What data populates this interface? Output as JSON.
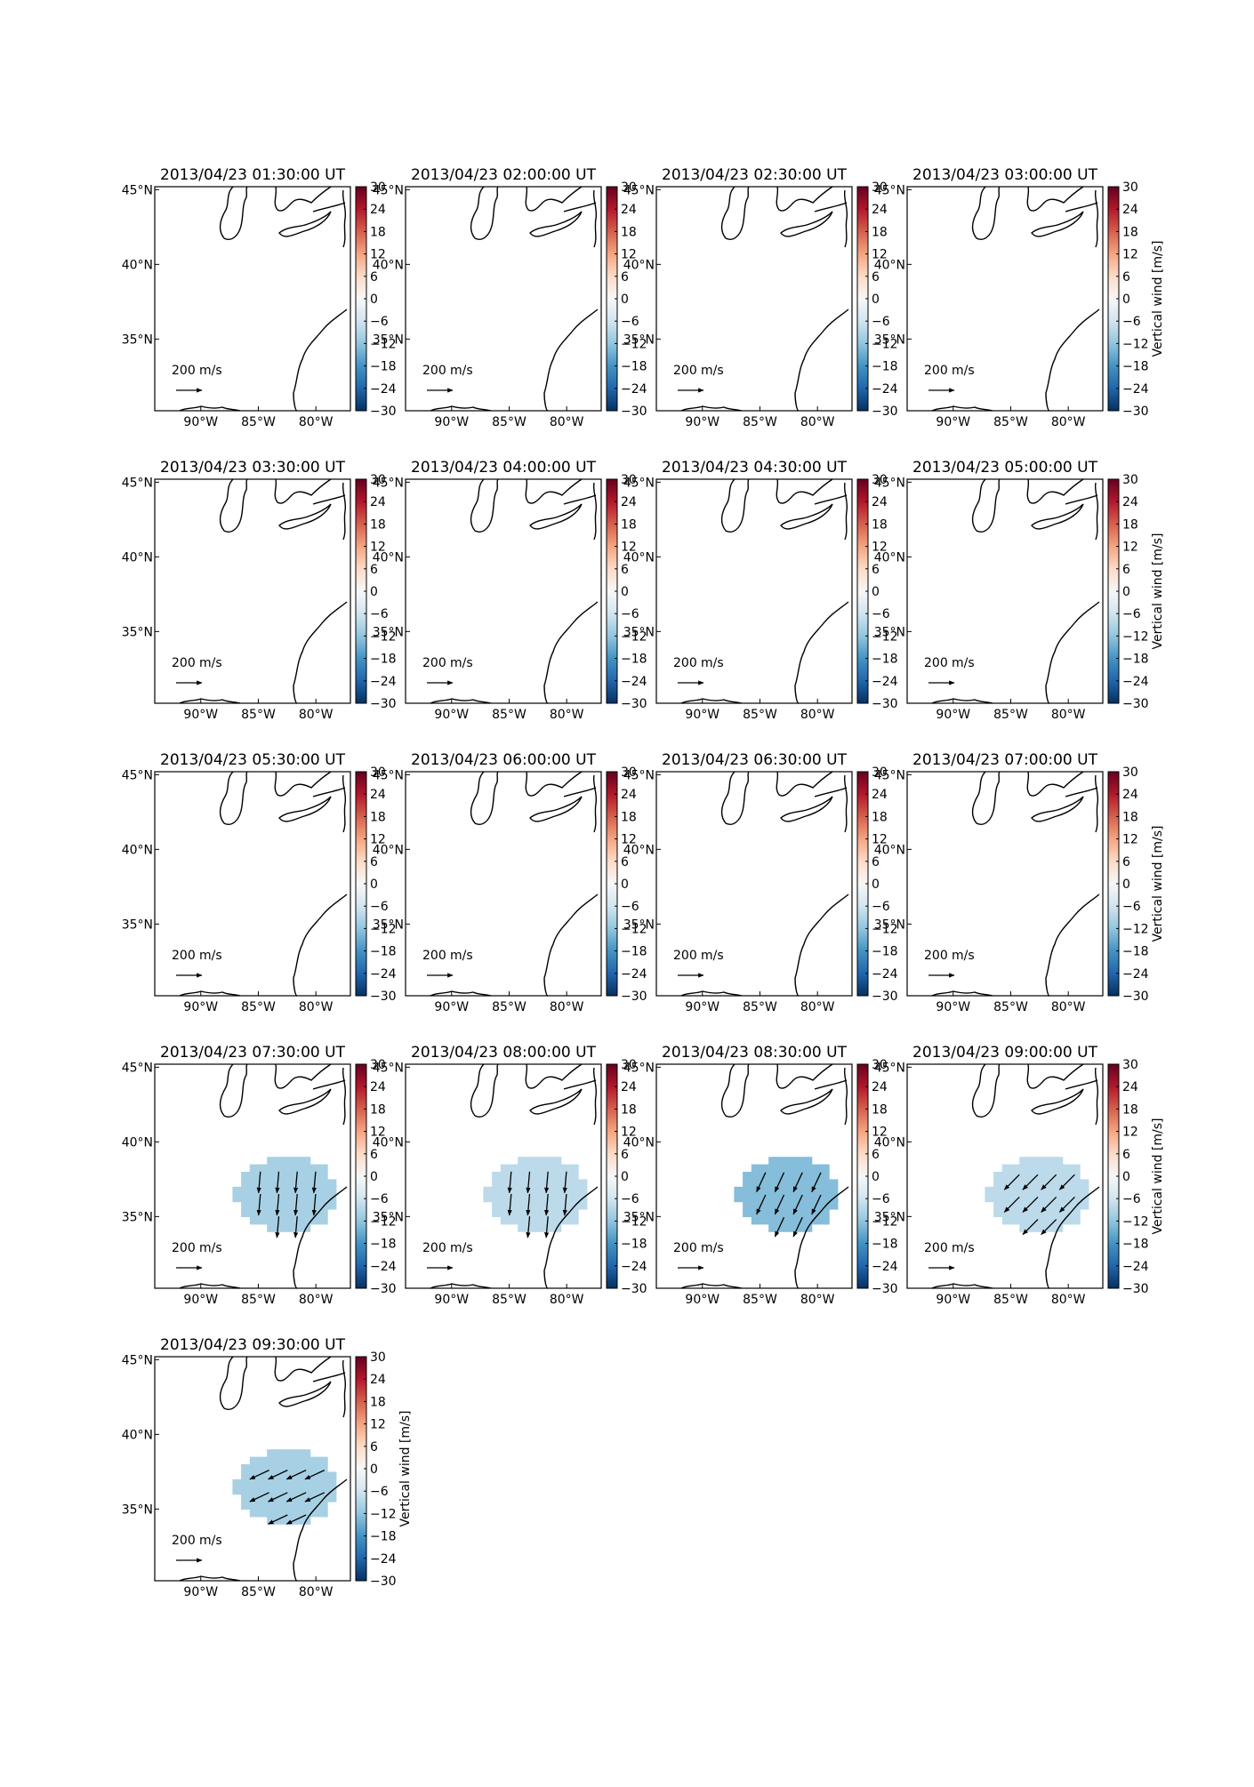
{
  "chart_data": {
    "type": "map",
    "grid": "5x4 small multiples (17 panels)",
    "variable": "Vertical wind",
    "colorbar_label": "Vertical wind [m/s]",
    "colorbar_ticks": [
      "30",
      "24",
      "18",
      "12",
      "6",
      "0",
      "−6",
      "−12",
      "−18",
      "−24",
      "−30"
    ],
    "colorbar_range": [
      -30,
      30
    ],
    "colormap": "RdBu_r",
    "lat_ticks": [
      "45°N",
      "40°N",
      "35°N"
    ],
    "lon_ticks": [
      "90°W",
      "85°W",
      "80°W"
    ],
    "quiver_key_label": "200 m/s",
    "quiver_key_value": 200,
    "quiver_key_unit": "m/s",
    "panels": [
      {
        "title": "2013/04/23 01:30:00 UT",
        "has_data": false
      },
      {
        "title": "2013/04/23 02:00:00 UT",
        "has_data": false
      },
      {
        "title": "2013/04/23 02:30:00 UT",
        "has_data": false
      },
      {
        "title": "2013/04/23 03:00:00 UT",
        "has_data": false
      },
      {
        "title": "2013/04/23 03:30:00 UT",
        "has_data": false
      },
      {
        "title": "2013/04/23 04:00:00 UT",
        "has_data": false
      },
      {
        "title": "2013/04/23 04:30:00 UT",
        "has_data": false
      },
      {
        "title": "2013/04/23 05:00:00 UT",
        "has_data": false
      },
      {
        "title": "2013/04/23 05:30:00 UT",
        "has_data": false
      },
      {
        "title": "2013/04/23 06:00:00 UT",
        "has_data": false
      },
      {
        "title": "2013/04/23 06:30:00 UT",
        "has_data": false
      },
      {
        "title": "2013/04/23 07:00:00 UT",
        "has_data": false
      },
      {
        "title": "2013/04/23 07:30:00 UT",
        "has_data": true,
        "fill_value": -10,
        "wind_direction_deg": 185
      },
      {
        "title": "2013/04/23 08:00:00 UT",
        "has_data": true,
        "fill_value": -8,
        "wind_direction_deg": 185
      },
      {
        "title": "2013/04/23 08:30:00 UT",
        "has_data": true,
        "fill_value": -13,
        "wind_direction_deg": 205
      },
      {
        "title": "2013/04/23 09:00:00 UT",
        "has_data": true,
        "fill_value": -8,
        "wind_direction_deg": 225
      },
      {
        "title": "2013/04/23 09:30:00 UT",
        "has_data": true,
        "fill_value": -10,
        "wind_direction_deg": 245
      }
    ]
  }
}
